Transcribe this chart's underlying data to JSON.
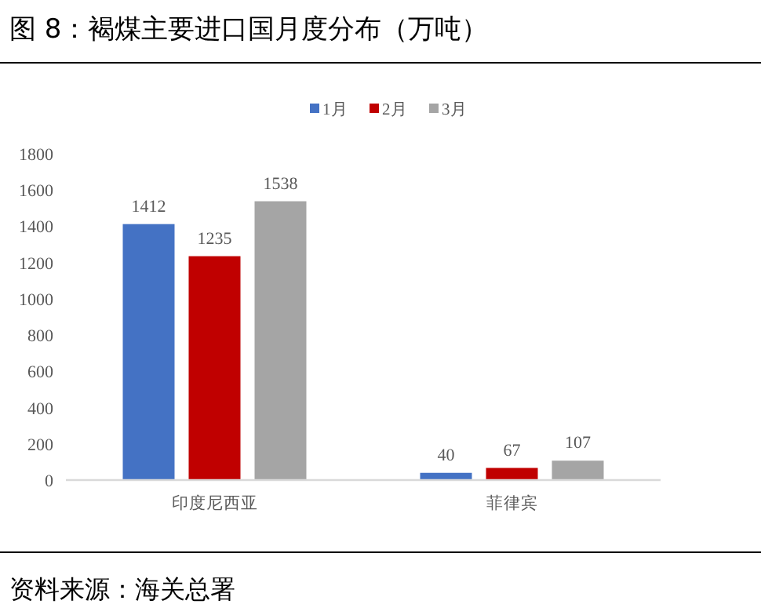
{
  "chart_data": {
    "type": "bar",
    "title": "图 8：褐煤主要进口国月度分布（万吨）",
    "categories": [
      "印度尼西亚",
      "菲律宾"
    ],
    "series": [
      {
        "name": "1月",
        "color": "#4472c4",
        "values": [
          1412,
          40
        ]
      },
      {
        "name": "2月",
        "color": "#c00000",
        "values": [
          1235,
          67
        ]
      },
      {
        "name": "3月",
        "color": "#a5a5a5",
        "values": [
          1538,
          107
        ]
      }
    ],
    "ylim": [
      0,
      1800
    ],
    "yticks": [
      0,
      200,
      400,
      600,
      800,
      1000,
      1200,
      1400,
      1600,
      1800
    ],
    "data_labels": true,
    "legend": "top",
    "grid": false,
    "annotations": [
      "资料来源：海关总署"
    ]
  }
}
